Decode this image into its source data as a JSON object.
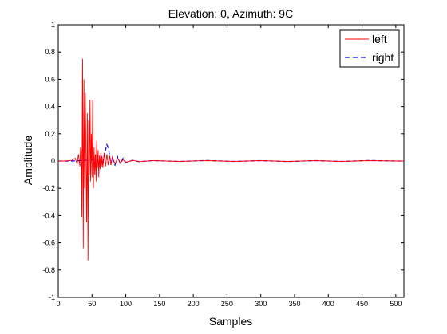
{
  "chart_data": {
    "type": "line",
    "title": "Elevation: 0, Azimuth: 9C",
    "xlabel": "Samples",
    "ylabel": "Amplitude",
    "xlim": [
      0,
      512
    ],
    "ylim": [
      -1,
      1
    ],
    "xticks": [
      0,
      50,
      100,
      150,
      200,
      250,
      300,
      350,
      400,
      450,
      500
    ],
    "yticks": [
      -1,
      -0.8,
      -0.6,
      -0.4,
      -0.2,
      0,
      0.2,
      0.4,
      0.6,
      0.8,
      1
    ],
    "xtick_labels": [
      "0",
      "50",
      "100",
      "150",
      "200",
      "250",
      "300",
      "350",
      "400",
      "450",
      "500"
    ],
    "ytick_labels": [
      "-1",
      "-0.8",
      "-0.6",
      "-0.4",
      "-0.2",
      "0",
      "0.2",
      "0.4",
      "0.6",
      "0.8",
      "1"
    ],
    "grid": false,
    "legend_position": "top-right",
    "series": [
      {
        "name": "left",
        "color": "#ff0000",
        "style": "solid",
        "points": [
          [
            0,
            0
          ],
          [
            10,
            0
          ],
          [
            20,
            0.005
          ],
          [
            25,
            0.02
          ],
          [
            28,
            -0.02
          ],
          [
            30,
            0.05
          ],
          [
            32,
            -0.04
          ],
          [
            33,
            0.1
          ],
          [
            34,
            0.08
          ],
          [
            35,
            -0.41
          ],
          [
            36,
            0.75
          ],
          [
            37,
            -0.64
          ],
          [
            38,
            0.6
          ],
          [
            39,
            -0.2
          ],
          [
            40,
            0.5
          ],
          [
            41,
            0.05
          ],
          [
            42,
            -0.45
          ],
          [
            43,
            0.35
          ],
          [
            44,
            -0.73
          ],
          [
            45,
            0.3
          ],
          [
            46,
            -0.1
          ],
          [
            47,
            0.45
          ],
          [
            48,
            -0.15
          ],
          [
            49,
            0.2
          ],
          [
            50,
            -0.12
          ],
          [
            51,
            0.45
          ],
          [
            52,
            -0.2
          ],
          [
            53,
            0.1
          ],
          [
            54,
            -0.1
          ],
          [
            55,
            0.05
          ],
          [
            56,
            -0.15
          ],
          [
            57,
            0.15
          ],
          [
            58,
            -0.05
          ],
          [
            59,
            0.08
          ],
          [
            60,
            -0.12
          ],
          [
            61,
            0.04
          ],
          [
            62,
            -0.06
          ],
          [
            63,
            0.06
          ],
          [
            64,
            -0.04
          ],
          [
            65,
            0.03
          ],
          [
            66,
            -0.05
          ],
          [
            68,
            0.06
          ],
          [
            70,
            -0.04
          ],
          [
            72,
            0.05
          ],
          [
            74,
            -0.03
          ],
          [
            76,
            0.04
          ],
          [
            78,
            -0.03
          ],
          [
            80,
            0.03
          ],
          [
            84,
            -0.02
          ],
          [
            88,
            0.02
          ],
          [
            92,
            -0.015
          ],
          [
            96,
            0.01
          ],
          [
            100,
            -0.01
          ],
          [
            110,
            0.005
          ],
          [
            120,
            -0.005
          ],
          [
            140,
            0.003
          ],
          [
            180,
            -0.003
          ],
          [
            220,
            0.003
          ],
          [
            260,
            -0.003
          ],
          [
            300,
            0.003
          ],
          [
            340,
            -0.003
          ],
          [
            380,
            0.003
          ],
          [
            420,
            -0.003
          ],
          [
            460,
            0.003
          ],
          [
            500,
            0
          ],
          [
            512,
            0
          ]
        ]
      },
      {
        "name": "right",
        "color": "#0000ff",
        "style": "dashed",
        "points": [
          [
            0,
            0
          ],
          [
            20,
            0
          ],
          [
            40,
            0.005
          ],
          [
            55,
            0.01
          ],
          [
            60,
            -0.01
          ],
          [
            64,
            0.03
          ],
          [
            66,
            -0.03
          ],
          [
            68,
            0.05
          ],
          [
            70,
            0.08
          ],
          [
            72,
            0.12
          ],
          [
            74,
            0.1
          ],
          [
            76,
            0.04
          ],
          [
            78,
            -0.02
          ],
          [
            80,
            0.02
          ],
          [
            84,
            -0.03
          ],
          [
            88,
            0.03
          ],
          [
            92,
            -0.02
          ],
          [
            96,
            0.02
          ],
          [
            100,
            -0.01
          ],
          [
            110,
            0.005
          ],
          [
            120,
            -0.005
          ],
          [
            140,
            0.003
          ],
          [
            180,
            -0.003
          ],
          [
            220,
            0.004
          ],
          [
            260,
            -0.003
          ],
          [
            300,
            0.003
          ],
          [
            340,
            -0.004
          ],
          [
            380,
            0.003
          ],
          [
            420,
            -0.003
          ],
          [
            460,
            0.004
          ],
          [
            500,
            0
          ],
          [
            512,
            0
          ]
        ]
      }
    ]
  }
}
